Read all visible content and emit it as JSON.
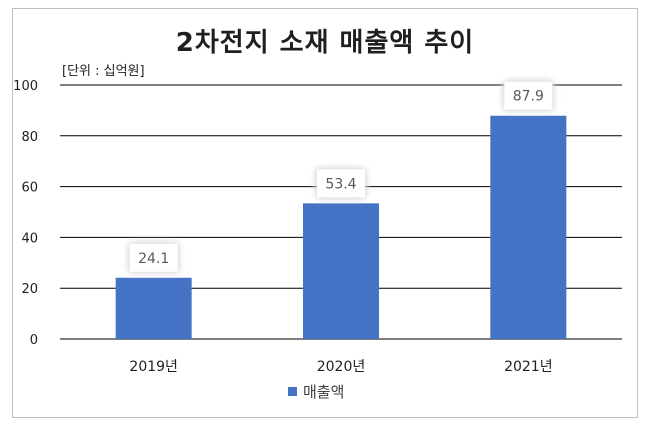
{
  "chart_data": {
    "type": "bar",
    "title": "2차전지 소재 매출액 추이",
    "unit_label": "[단위 : 십억원]",
    "categories": [
      "2019년",
      "2020년",
      "2021년"
    ],
    "series": [
      {
        "name": "매출액",
        "values": [
          24.1,
          53.4,
          87.9
        ]
      }
    ],
    "data_labels": [
      "24.1",
      "53.4",
      "87.9"
    ],
    "ylim": [
      0,
      100
    ],
    "yticks": [
      0,
      20,
      40,
      60,
      80,
      100
    ],
    "grid": true,
    "legend_position": "bottom",
    "bar_color": "#4472c4"
  }
}
